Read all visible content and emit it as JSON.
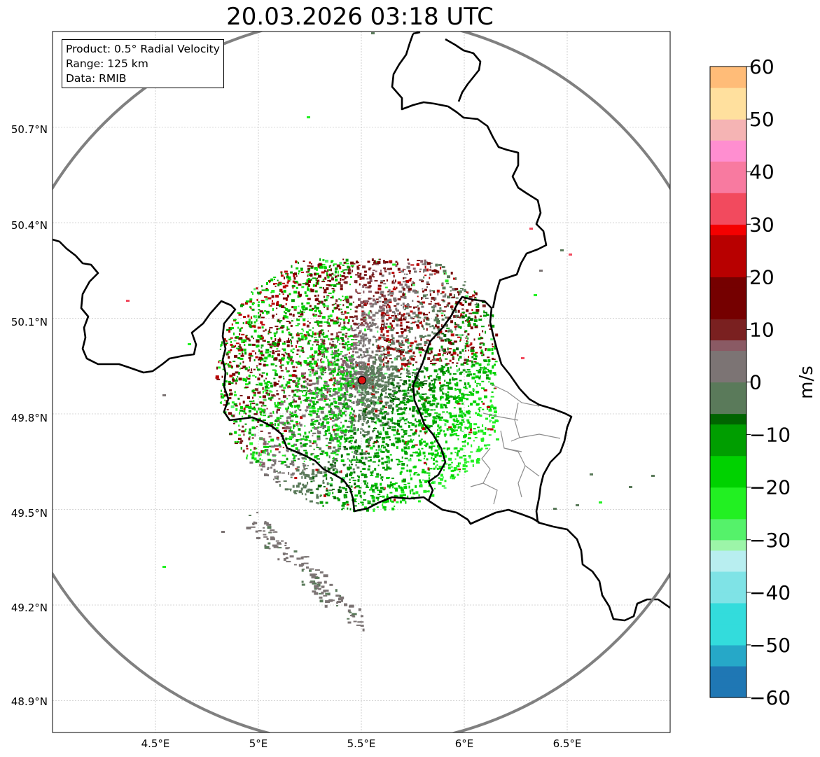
{
  "title": "20.03.2026 03:18 UTC",
  "info": {
    "product": "Product: 0.5° Radial Velocity",
    "range": "Range: 125 km",
    "data": "Data: RMIB"
  },
  "axes": {
    "lon_ticks": [
      {
        "value": 4.5,
        "label": "4.5°E"
      },
      {
        "value": 5.0,
        "label": "5°E"
      },
      {
        "value": 5.5,
        "label": "5.5°E"
      },
      {
        "value": 6.0,
        "label": "6°E"
      },
      {
        "value": 6.5,
        "label": "6.5°E"
      }
    ],
    "lat_ticks": [
      {
        "value": 50.7,
        "label": "50.7°N"
      },
      {
        "value": 50.4,
        "label": "50.4°N"
      },
      {
        "value": 50.1,
        "label": "50.1°N"
      },
      {
        "value": 49.8,
        "label": "49.8°N"
      },
      {
        "value": 49.5,
        "label": "49.5°N"
      },
      {
        "value": 49.2,
        "label": "49.2°N"
      },
      {
        "value": 48.9,
        "label": "48.9°N"
      }
    ],
    "lon_range": [
      4.0,
      7.0
    ],
    "lat_range": [
      48.8,
      51.0
    ]
  },
  "radar_site": {
    "lon": 5.505,
    "lat": 49.915
  },
  "colorbar": {
    "label": "m/s",
    "vmin": -60,
    "vmax": 60,
    "ticks": [
      "60",
      "50",
      "40",
      "30",
      "20",
      "10",
      "0",
      "−10",
      "−20",
      "−30",
      "−40",
      "−50",
      "−60"
    ],
    "tick_values": [
      60,
      50,
      40,
      30,
      20,
      10,
      0,
      -10,
      -20,
      -30,
      -40,
      -50,
      -60
    ],
    "stops": [
      {
        "v": -60,
        "c": "#1f77b4"
      },
      {
        "v": -54,
        "c": "#26a8c8"
      },
      {
        "v": -50,
        "c": "#33dcdc"
      },
      {
        "v": -42,
        "c": "#7fe3e6"
      },
      {
        "v": -36,
        "c": "#b8eef0"
      },
      {
        "v": -32,
        "c": "#9cf5a8"
      },
      {
        "v": -30,
        "c": "#55f26a"
      },
      {
        "v": -26,
        "c": "#22f022"
      },
      {
        "v": -20,
        "c": "#00d200"
      },
      {
        "v": -14,
        "c": "#009e00"
      },
      {
        "v": -8,
        "c": "#006400"
      },
      {
        "v": -6,
        "c": "#5a7a5a"
      },
      {
        "v": 0,
        "c": "#7c7474"
      },
      {
        "v": 6,
        "c": "#8a5a64"
      },
      {
        "v": 8,
        "c": "#7a2020"
      },
      {
        "v": 12,
        "c": "#750000"
      },
      {
        "v": 20,
        "c": "#b80000"
      },
      {
        "v": 28,
        "c": "#f40000"
      },
      {
        "v": 30,
        "c": "#f24a5e"
      },
      {
        "v": 36,
        "c": "#f87aa0"
      },
      {
        "v": 42,
        "c": "#ff8ed0"
      },
      {
        "v": 46,
        "c": "#f5b4b4"
      },
      {
        "v": 50,
        "c": "#ffe09e"
      },
      {
        "v": 56,
        "c": "#ffbc78"
      },
      {
        "v": 60,
        "c": "#ff9955"
      }
    ]
  },
  "colors": {
    "grid": "#b0b0b0",
    "border": "#000000",
    "range_ring": "#808080",
    "admin": "#8c8c8c",
    "site": "#e01010"
  }
}
